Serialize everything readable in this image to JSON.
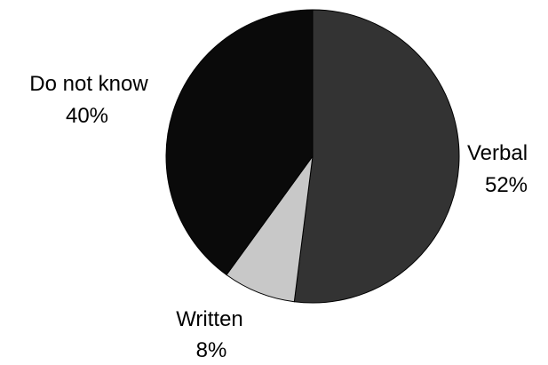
{
  "chart_data": {
    "type": "pie",
    "title": "",
    "slices": [
      {
        "label": "Verbal",
        "value": 52,
        "value_label": "52%",
        "color": "#333333"
      },
      {
        "label": "Written",
        "value": 8,
        "value_label": "8%",
        "color": "#c8c8c8"
      },
      {
        "label": "Do not know",
        "value": 40,
        "value_label": "40%",
        "color": "#0a0a0a"
      }
    ],
    "start_angle_deg": 0,
    "direction": "clockwise",
    "legend": "none",
    "edge_color": "#000000"
  }
}
